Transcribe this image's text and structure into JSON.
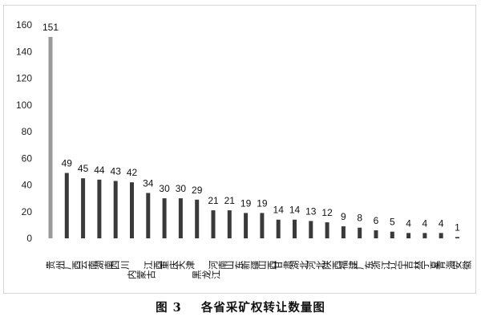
{
  "caption": "图 3    各省采矿权转让数量图",
  "chart_data": {
    "type": "bar",
    "categories": [
      "贵州",
      "广西",
      "云南",
      "湖南",
      "四川",
      "内蒙古",
      "江西",
      "重庆",
      "天津",
      "黑龙江",
      "河南",
      "山东",
      "新疆",
      "山西",
      "甘肃",
      "湖北",
      "河北",
      "陕西",
      "福建",
      "广东",
      "浙江",
      "辽宁",
      "吉林",
      "宁夏",
      "青海",
      "安徽"
    ],
    "values": [
      151,
      49,
      45,
      44,
      43,
      42,
      34,
      30,
      30,
      29,
      21,
      21,
      19,
      19,
      14,
      14,
      13,
      12,
      9,
      8,
      6,
      5,
      4,
      4,
      4,
      1
    ],
    "ylim": [
      0,
      160
    ],
    "yticks": [
      0,
      20,
      40,
      60,
      80,
      100,
      120,
      140,
      160
    ],
    "grid": false,
    "colors": {
      "first_bar": "#9a9a9a",
      "bar": "#3a3a3a"
    }
  }
}
